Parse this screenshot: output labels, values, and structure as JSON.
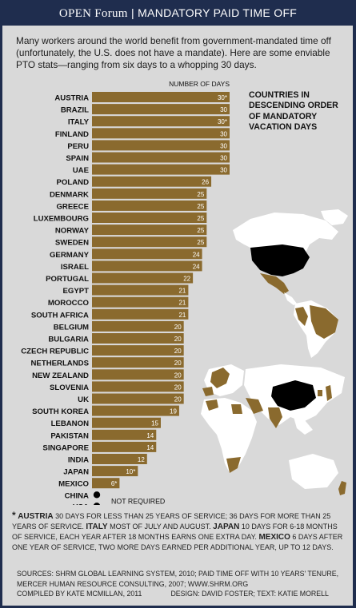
{
  "header": {
    "brand": "OPEN Forum",
    "separator": "|",
    "title": "MANDATORY PAID TIME OFF"
  },
  "intro": "Many workers around the world benefit from government-mandated time off (unfortunately, the U.S. does not have a mandate). Here are some enviable PTO stats—ranging from six days to a whopping 30 days.",
  "legend_title": "COUNTRIES IN DESCENDING ORDER OF MANDATORY VACATION DAYS",
  "not_required_label": "NOT REQUIRED",
  "colors": {
    "bar": "#8a6a2e",
    "header_bg": "#1f2d4e",
    "panel_bg": "#d9d9d9",
    "land_highlight": "#8a6a2e",
    "land_other": "#ffffff",
    "land_us_china": "#000000"
  },
  "chart_data": {
    "type": "bar",
    "orientation": "horizontal",
    "xlabel": "NUMBER OF DAYS",
    "categories": [
      "AUSTRIA",
      "BRAZIL",
      "ITALY",
      "FINLAND",
      "PERU",
      "SPAIN",
      "UAE",
      "POLAND",
      "DENMARK",
      "GREECE",
      "LUXEMBOURG",
      "NORWAY",
      "SWEDEN",
      "GERMANY",
      "ISRAEL",
      "PORTUGAL",
      "EGYPT",
      "MOROCCO",
      "SOUTH AFRICA",
      "BELGIUM",
      "BULGARIA",
      "CZECH REPUBLIC",
      "NETHERLANDS",
      "NEW ZEALAND",
      "SLOVENIA",
      "UK",
      "SOUTH KOREA",
      "LEBANON",
      "PAKISTAN",
      "SINGAPORE",
      "INDIA",
      "JAPAN",
      "MEXICO"
    ],
    "values": [
      30,
      30,
      30,
      30,
      30,
      30,
      30,
      26,
      25,
      25,
      25,
      25,
      25,
      24,
      24,
      22,
      21,
      21,
      21,
      20,
      20,
      20,
      20,
      20,
      20,
      20,
      19,
      15,
      14,
      14,
      12,
      10,
      6
    ],
    "value_labels": [
      "30*",
      "30",
      "30*",
      "30",
      "30",
      "30",
      "30",
      "26",
      "25",
      "25",
      "25",
      "25",
      "25",
      "24",
      "24",
      "22",
      "21",
      "21",
      "21",
      "20",
      "20",
      "20",
      "20",
      "20",
      "20",
      "20",
      "19",
      "15",
      "14",
      "14",
      "12",
      "10*",
      "6*"
    ],
    "not_required": [
      "CHINA",
      "USA"
    ],
    "xlim": [
      0,
      30
    ]
  },
  "footnote": {
    "star": "*",
    "entries": [
      {
        "country": "AUSTRIA",
        "text": "30 DAYS FOR LESS THAN 25 YEARS OF SERVICE; 36 DAYS FOR MORE THAN 25 YEARS OF SERVICE."
      },
      {
        "country": "ITALY",
        "text": "MOST OF JULY AND AUGUST."
      },
      {
        "country": "JAPAN",
        "text": "10 DAYS FOR 6-18 MONTHS OF SERVICE, EACH YEAR AFTER 18 MONTHS EARNS ONE EXTRA DAY."
      },
      {
        "country": "MEXICO",
        "text": "6 DAYS AFTER ONE YEAR OF SERVICE, TWO MORE DAYS EARNED PER ADDITIONAL YEAR, UP TO 12 DAYS."
      }
    ]
  },
  "sources": {
    "line": "SOURCES: SHRM GLOBAL LEARNING SYSTEM, 2010; PAID TIME OFF WITH 10 YEARS' TENURE, MERCER HUMAN RESOURCE CONSULTING, 2007; WWW.SHRM.ORG",
    "compiled": "COMPILED BY KATE MCMILLAN, 2011",
    "design": "DESIGN: DAVID FOSTER; TEXT: KATIE MORELL"
  }
}
